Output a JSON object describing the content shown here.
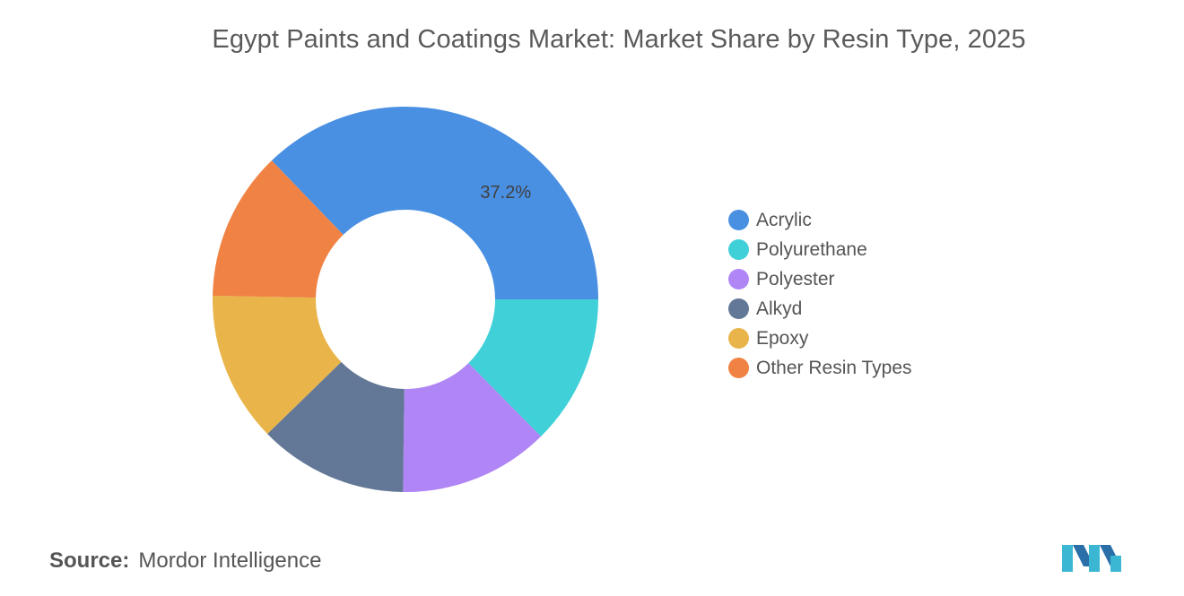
{
  "title": "Egypt Paints and Coatings Market: Market Share by Resin Type, 2025",
  "source": {
    "label": "Source:",
    "value": "Mordor Intelligence"
  },
  "logo": "Mordor Intelligence logo",
  "chart_data": {
    "type": "pie",
    "subtype": "donut",
    "title": "Egypt Paints and Coatings Market: Market Share by Resin Type, 2025",
    "categories": [
      "Acrylic",
      "Polyurethane",
      "Polyester",
      "Alkyd",
      "Epoxy",
      "Other Resin Types"
    ],
    "values": [
      37.2,
      12.6,
      12.6,
      12.5,
      12.6,
      12.5
    ],
    "unit": "%",
    "colors": [
      "#4a90e2",
      "#40d0d8",
      "#b085f5",
      "#637796",
      "#e9b54a",
      "#f08244"
    ],
    "data_labels": [
      {
        "category": "Acrylic",
        "text": "37.2%"
      }
    ],
    "legend": {
      "position": "right",
      "entries": [
        "Acrylic",
        "Polyurethane",
        "Polyester",
        "Alkyd",
        "Epoxy",
        "Other Resin Types"
      ]
    }
  }
}
